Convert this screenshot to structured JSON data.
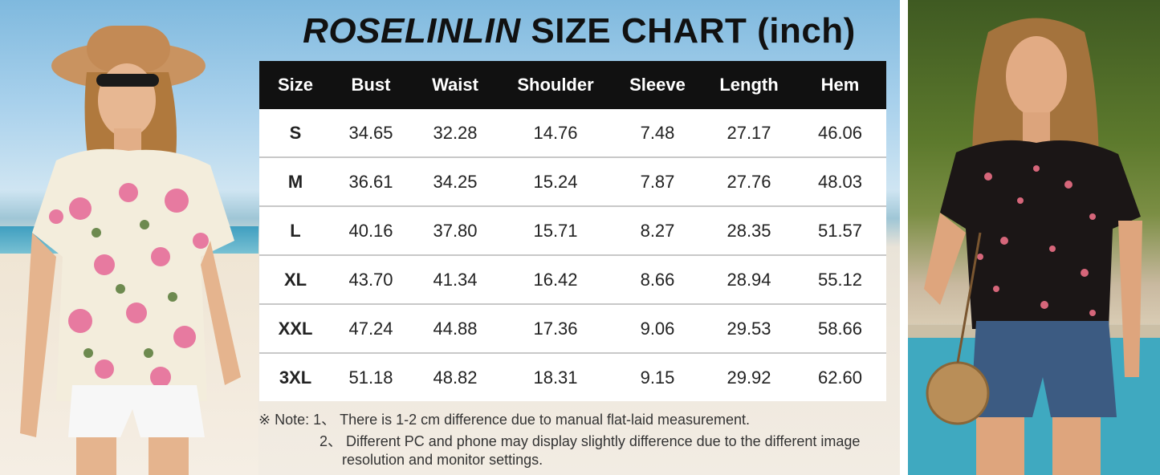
{
  "title": {
    "brand": "ROSELINLIN",
    "rest": "SIZE CHART (inch)"
  },
  "table": {
    "headers": [
      "Size",
      "Bust",
      "Waist",
      "Shoulder",
      "Sleeve",
      "Length",
      "Hem"
    ],
    "rows": [
      [
        "S",
        "34.65",
        "32.28",
        "14.76",
        "7.48",
        "27.17",
        "46.06"
      ],
      [
        "M",
        "36.61",
        "34.25",
        "15.24",
        "7.87",
        "27.76",
        "48.03"
      ],
      [
        "L",
        "40.16",
        "37.80",
        "15.71",
        "8.27",
        "28.35",
        "51.57"
      ],
      [
        "XL",
        "43.70",
        "41.34",
        "16.42",
        "8.66",
        "28.94",
        "55.12"
      ],
      [
        "XXL",
        "47.24",
        "44.88",
        "17.36",
        "9.06",
        "29.53",
        "58.66"
      ],
      [
        "3XL",
        "51.18",
        "48.82",
        "18.31",
        "9.15",
        "29.92",
        "62.60"
      ]
    ]
  },
  "notes": {
    "line1": "※ Note:  1、 There is 1-2 cm difference due to manual flat-laid measurement.",
    "line2": "2、 Different PC and phone may display slightly difference due to the different image",
    "line3": "resolution and monitor settings."
  },
  "colors": {
    "header_bg": "#111111",
    "row_border": "#c8c8c8"
  },
  "images": {
    "left": "model-floral-white-top-photo",
    "right": "model-floral-black-top-photo"
  }
}
